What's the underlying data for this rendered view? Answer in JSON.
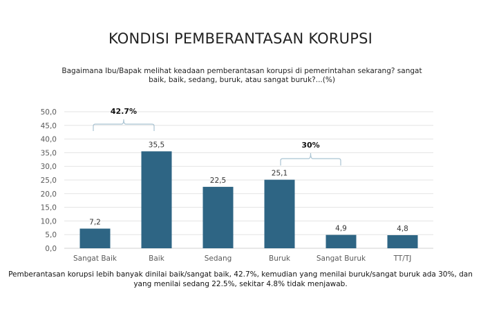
{
  "title": "KONDISI PEMBERANTASAN KORUPSI",
  "subtitle": "Bagaimana Ibu/Bapak melihat keadaan pemberantasan korupsi di pemerintahan sekarang? sangat baik, baik, sedang, buruk, atau sangat buruk?...(%)",
  "caption": "Pemberantasan korupsi lebih banyak dinilai baik/sangat baik, 42.7%, kemudian yang menilai buruk/sangat buruk ada 30%, dan yang menilai sedang 22.5%, sekitar 4.8% tidak menjawab.",
  "colors": {
    "bar": "#2e6584",
    "grid": "#e3e3e3",
    "brace": "#a9c3d2",
    "axis_text": "#595959"
  },
  "chart_data": {
    "type": "bar",
    "title": "KONDISI PEMBERANTASAN KORUPSI",
    "xlabel": "",
    "ylabel": "%",
    "categories": [
      "Sangat Baik",
      "Baik",
      "Sedang",
      "Buruk",
      "Sangat Buruk",
      "TT/TJ"
    ],
    "values": [
      7.2,
      35.5,
      22.5,
      25.1,
      4.9,
      4.8
    ],
    "value_labels": [
      "7,2",
      "35,5",
      "22,5",
      "25,1",
      "4,9",
      "4,8"
    ],
    "ylim": [
      0,
      50
    ],
    "yticks": [
      "0,0",
      "5,0",
      "10,0",
      "15,0",
      "20,0",
      "25,0",
      "30,0",
      "35,0",
      "40,0",
      "45,0",
      "50,0"
    ],
    "grid": true,
    "legend": "none",
    "annotations": [
      {
        "label": "42.7%",
        "spans": [
          "Sangat Baik",
          "Baik"
        ]
      },
      {
        "label": "30%",
        "spans": [
          "Buruk",
          "Sangat Buruk"
        ]
      }
    ]
  }
}
